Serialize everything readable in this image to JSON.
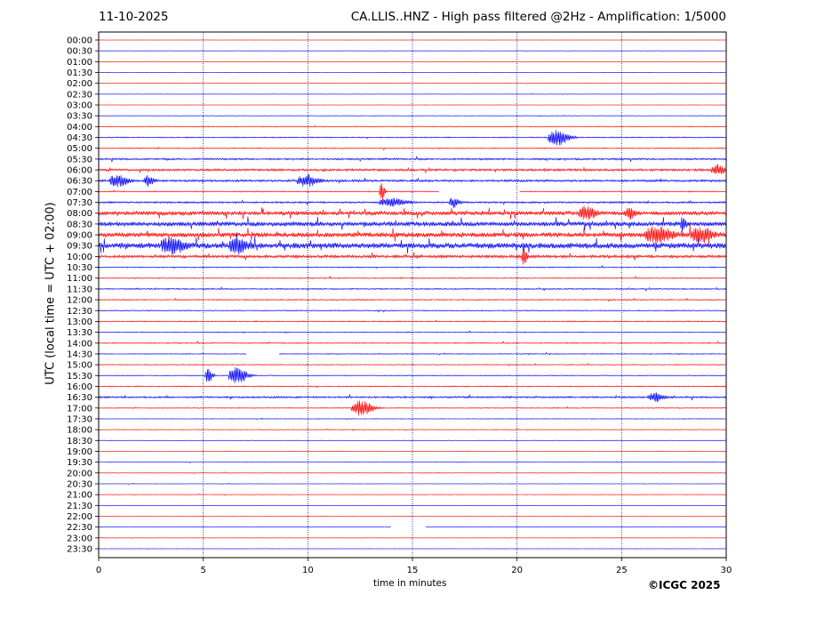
{
  "header": {
    "date": "11-10-2025",
    "title": "CA.LLIS..HNZ - High pass filtered @2Hz - Amplification: 1/5000"
  },
  "footer": {
    "copyright": "©ICGC 2025"
  },
  "chart_data": {
    "type": "line",
    "title": "CA.LLIS..HNZ - High pass filtered @2Hz - Amplification: 1/5000",
    "xlabel": "time in minutes",
    "ylabel": "UTC (local time = UTC + 02:00)",
    "xlim": [
      0,
      30
    ],
    "x_ticks": [
      0,
      5,
      10,
      15,
      20,
      25,
      30
    ],
    "grid": "vertical dotted lines at 5, 10, 15, 20, 25",
    "row_colors": [
      "#ff0000",
      "#0000ff"
    ],
    "rows": [
      "00:00",
      "00:30",
      "01:00",
      "01:30",
      "02:00",
      "02:30",
      "03:00",
      "03:30",
      "04:00",
      "04:30",
      "05:00",
      "05:30",
      "06:00",
      "06:30",
      "07:00",
      "07:30",
      "08:00",
      "08:30",
      "09:00",
      "09:30",
      "10:00",
      "10:30",
      "11:00",
      "11:30",
      "12:00",
      "12:30",
      "13:00",
      "13:30",
      "14:00",
      "14:30",
      "15:00",
      "15:30",
      "16:00",
      "16:30",
      "17:00",
      "17:30",
      "18:00",
      "18:30",
      "19:00",
      "19:30",
      "20:00",
      "20:30",
      "21:00",
      "21:30",
      "22:00",
      "22:30",
      "23:00",
      "23:30"
    ],
    "noise_level": [
      0.2,
      0.2,
      0.2,
      0.2,
      0.2,
      0.2,
      0.2,
      0.3,
      0.5,
      0.6,
      0.6,
      1.0,
      1.2,
      1.2,
      0.6,
      1.0,
      2.2,
      2.6,
      2.6,
      3.2,
      1.6,
      0.6,
      0.6,
      0.7,
      0.6,
      0.6,
      0.6,
      0.5,
      0.6,
      0.5,
      0.5,
      0.5,
      0.6,
      1.0,
      0.5,
      0.4,
      0.4,
      0.3,
      0.3,
      0.3,
      0.3,
      0.3,
      0.3,
      0.2,
      0.2,
      0.2,
      0.2,
      0.2
    ],
    "events": [
      {
        "row": "04:30",
        "x": 21.8,
        "amp": 9,
        "dur": 0.8
      },
      {
        "row": "06:00",
        "x": 29.5,
        "amp": 6,
        "dur": 0.5
      },
      {
        "row": "06:30",
        "x": 0.8,
        "amp": 7,
        "dur": 0.7
      },
      {
        "row": "06:30",
        "x": 2.3,
        "amp": 6,
        "dur": 0.4
      },
      {
        "row": "06:30",
        "x": 9.8,
        "amp": 7,
        "dur": 0.8
      },
      {
        "row": "07:00",
        "x": 13.5,
        "amp": 12,
        "dur": 0.2
      },
      {
        "row": "07:30",
        "x": 13.8,
        "amp": 5,
        "dur": 1.0
      },
      {
        "row": "07:30",
        "x": 16.9,
        "amp": 6,
        "dur": 0.4
      },
      {
        "row": "08:00",
        "x": 23.2,
        "amp": 8,
        "dur": 0.6
      },
      {
        "row": "08:00",
        "x": 25.3,
        "amp": 6,
        "dur": 0.4
      },
      {
        "row": "08:30",
        "x": 27.9,
        "amp": 9,
        "dur": 0.2
      },
      {
        "row": "09:00",
        "x": 26.5,
        "amp": 9,
        "dur": 1.0
      },
      {
        "row": "09:00",
        "x": 28.6,
        "amp": 8,
        "dur": 0.9
      },
      {
        "row": "09:30",
        "x": 3.3,
        "amp": 8,
        "dur": 0.8
      },
      {
        "row": "09:30",
        "x": 6.5,
        "amp": 8,
        "dur": 0.7
      },
      {
        "row": "10:00",
        "x": 20.3,
        "amp": 10,
        "dur": 0.2
      },
      {
        "row": "15:30",
        "x": 5.2,
        "amp": 8,
        "dur": 0.3
      },
      {
        "row": "15:30",
        "x": 6.5,
        "amp": 10,
        "dur": 0.7
      },
      {
        "row": "16:30",
        "x": 26.5,
        "amp": 5,
        "dur": 0.6
      },
      {
        "row": "17:00",
        "x": 12.4,
        "amp": 9,
        "dur": 0.8
      }
    ],
    "gaps": [
      {
        "row": "07:00",
        "from": 16.3,
        "to": 20.1
      },
      {
        "row": "14:30",
        "from": 7.1,
        "to": 8.6
      },
      {
        "row": "22:30",
        "from": 14.0,
        "to": 15.6
      }
    ]
  }
}
